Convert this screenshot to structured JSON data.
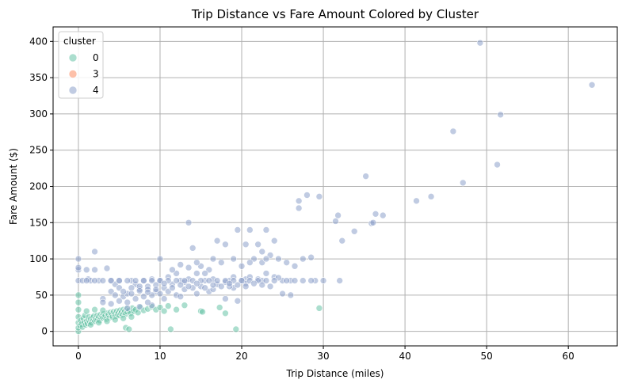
{
  "chart_data": {
    "type": "scatter",
    "title": "Trip Distance vs Fare Amount Colored by Cluster",
    "xlabel": "Trip Distance (miles)",
    "ylabel": "Fare Amount ($)",
    "xlim": [
      -3.1,
      66.0
    ],
    "ylim": [
      -20,
      420
    ],
    "xticks": [
      0,
      10,
      20,
      30,
      40,
      50,
      60
    ],
    "yticks": [
      0,
      50,
      100,
      150,
      200,
      250,
      300,
      350,
      400
    ],
    "grid": true,
    "legend": {
      "title": "cluster",
      "position": "top-left"
    },
    "series": [
      {
        "name": "0",
        "color": "#66c2a5",
        "points": [
          [
            0,
            0
          ],
          [
            0,
            5
          ],
          [
            0,
            12
          ],
          [
            0,
            20
          ],
          [
            0,
            30
          ],
          [
            0,
            40
          ],
          [
            0,
            50
          ],
          [
            0.2,
            8
          ],
          [
            0.3,
            15
          ],
          [
            0.4,
            10
          ],
          [
            0.5,
            6
          ],
          [
            0.6,
            18
          ],
          [
            0.7,
            12
          ],
          [
            0.8,
            22
          ],
          [
            0.9,
            9
          ],
          [
            1.0,
            14
          ],
          [
            1.1,
            11
          ],
          [
            1.2,
            16
          ],
          [
            1.3,
            20
          ],
          [
            1.4,
            13
          ],
          [
            1.5,
            17
          ],
          [
            1.6,
            12
          ],
          [
            1.7,
            19
          ],
          [
            1.8,
            15
          ],
          [
            1.9,
            21
          ],
          [
            2.0,
            14
          ],
          [
            2.1,
            18
          ],
          [
            2.2,
            16
          ],
          [
            2.3,
            22
          ],
          [
            2.4,
            17
          ],
          [
            2.5,
            20
          ],
          [
            2.6,
            15
          ],
          [
            2.7,
            23
          ],
          [
            2.8,
            18
          ],
          [
            2.9,
            21
          ],
          [
            3.0,
            19
          ],
          [
            3.1,
            24
          ],
          [
            3.2,
            20
          ],
          [
            3.3,
            22
          ],
          [
            3.4,
            17
          ],
          [
            3.5,
            25
          ],
          [
            3.6,
            21
          ],
          [
            3.7,
            23
          ],
          [
            3.8,
            19
          ],
          [
            3.9,
            26
          ],
          [
            4.0,
            22
          ],
          [
            4.1,
            24
          ],
          [
            4.2,
            20
          ],
          [
            4.3,
            27
          ],
          [
            4.4,
            23
          ],
          [
            4.5,
            25
          ],
          [
            4.6,
            21
          ],
          [
            4.7,
            28
          ],
          [
            4.8,
            24
          ],
          [
            4.9,
            26
          ],
          [
            5.0,
            22
          ],
          [
            5.1,
            29
          ],
          [
            5.2,
            25
          ],
          [
            5.3,
            27
          ],
          [
            5.4,
            23
          ],
          [
            5.5,
            30
          ],
          [
            5.6,
            26
          ],
          [
            5.7,
            28
          ],
          [
            5.8,
            24
          ],
          [
            5.9,
            31
          ],
          [
            6.0,
            27
          ],
          [
            6.2,
            29
          ],
          [
            6.4,
            25
          ],
          [
            6.6,
            32
          ],
          [
            6.8,
            28
          ],
          [
            7.0,
            30
          ],
          [
            7.3,
            26
          ],
          [
            7.6,
            33
          ],
          [
            8.0,
            29
          ],
          [
            8.5,
            31
          ],
          [
            9.0,
            34
          ],
          [
            9.5,
            30
          ],
          [
            10.0,
            33
          ],
          [
            10.5,
            28
          ],
          [
            11.0,
            35
          ],
          [
            12.0,
            30
          ],
          [
            13.0,
            36
          ],
          [
            15.0,
            28
          ],
          [
            18.0,
            25
          ],
          [
            1.0,
            28
          ],
          [
            2.0,
            30
          ],
          [
            3.0,
            29
          ],
          [
            2.5,
            12
          ],
          [
            1.5,
            9
          ],
          [
            3.5,
            14
          ],
          [
            4.5,
            16
          ],
          [
            5.5,
            18
          ],
          [
            6.5,
            20
          ],
          [
            5.8,
            5
          ],
          [
            6.2,
            3
          ],
          [
            11.3,
            3
          ],
          [
            19.3,
            3
          ],
          [
            29.5,
            32
          ],
          [
            17.3,
            33
          ],
          [
            15.2,
            27
          ]
        ]
      },
      {
        "name": "3",
        "color": "#fc8d62",
        "points": []
      },
      {
        "name": "4",
        "color": "#8da0cb",
        "points": [
          [
            0,
            70
          ],
          [
            0,
            85
          ],
          [
            0,
            100
          ],
          [
            0,
            88
          ],
          [
            0.5,
            70
          ],
          [
            1.0,
            85
          ],
          [
            1.2,
            72
          ],
          [
            1.5,
            70
          ],
          [
            2.0,
            110
          ],
          [
            2.0,
            85
          ],
          [
            2.5,
            70
          ],
          [
            3.0,
            70
          ],
          [
            3.0,
            45
          ],
          [
            3.5,
            87
          ],
          [
            4.0,
            55
          ],
          [
            4.0,
            70
          ],
          [
            4.5,
            65
          ],
          [
            5.0,
            60
          ],
          [
            5.0,
            70
          ],
          [
            5.5,
            48
          ],
          [
            6.0,
            52
          ],
          [
            6.5,
            70
          ],
          [
            7.0,
            65
          ],
          [
            7.5,
            58
          ],
          [
            8.0,
            70
          ],
          [
            8.5,
            62
          ],
          [
            9.0,
            72
          ],
          [
            9.5,
            55
          ],
          [
            10.0,
            100
          ],
          [
            10.0,
            70
          ],
          [
            10.5,
            60
          ],
          [
            11.0,
            75
          ],
          [
            11.5,
            65
          ],
          [
            12.0,
            80
          ],
          [
            12.5,
            70
          ],
          [
            13.0,
            68
          ],
          [
            13.5,
            150
          ],
          [
            13.5,
            72
          ],
          [
            14.0,
            115
          ],
          [
            14.5,
            80
          ],
          [
            15.0,
            90
          ],
          [
            15.5,
            70
          ],
          [
            16.0,
            85
          ],
          [
            16.5,
            72
          ],
          [
            17.0,
            125
          ],
          [
            17.5,
            95
          ],
          [
            18.0,
            120
          ],
          [
            18.5,
            70
          ],
          [
            19.0,
            75
          ],
          [
            19.5,
            140
          ],
          [
            20.0,
            90
          ],
          [
            20.5,
            72
          ],
          [
            21.0,
            140
          ],
          [
            21.5,
            100
          ],
          [
            22.0,
            120
          ],
          [
            22.5,
            95
          ],
          [
            23.0,
            140
          ],
          [
            23.5,
            105
          ],
          [
            24.0,
            125
          ],
          [
            24.5,
            100
          ],
          [
            25.0,
            70
          ],
          [
            25.5,
            95
          ],
          [
            26.0,
            70
          ],
          [
            26.5,
            90
          ],
          [
            27.0,
            170
          ],
          [
            27.0,
            180
          ],
          [
            27.5,
            100
          ],
          [
            28.0,
            188
          ],
          [
            28.5,
            102
          ],
          [
            29.0,
            70
          ],
          [
            29.5,
            186
          ],
          [
            30.0,
            70
          ],
          [
            31.5,
            152
          ],
          [
            31.8,
            160
          ],
          [
            32.0,
            70
          ],
          [
            32.3,
            125
          ],
          [
            33.8,
            138
          ],
          [
            35.2,
            214
          ],
          [
            35.9,
            149
          ],
          [
            36.1,
            150
          ],
          [
            36.4,
            162
          ],
          [
            37.3,
            160
          ],
          [
            41.4,
            180
          ],
          [
            43.2,
            186
          ],
          [
            45.9,
            276
          ],
          [
            47.1,
            205
          ],
          [
            49.2,
            398
          ],
          [
            51.3,
            230
          ],
          [
            51.7,
            299
          ],
          [
            62.9,
            340
          ],
          [
            3.0,
            40
          ],
          [
            4.0,
            38
          ],
          [
            5.0,
            42
          ],
          [
            6.0,
            40
          ],
          [
            7.0,
            45
          ],
          [
            8.0,
            48
          ],
          [
            9.0,
            50
          ],
          [
            10.0,
            52
          ],
          [
            11.0,
            55
          ],
          [
            12.0,
            50
          ],
          [
            13.0,
            58
          ],
          [
            14.0,
            60
          ],
          [
            15.0,
            62
          ],
          [
            16.0,
            55
          ],
          [
            17.0,
            65
          ],
          [
            18.0,
            68
          ],
          [
            19.0,
            60
          ],
          [
            20.0,
            70
          ],
          [
            21.0,
            75
          ],
          [
            22.0,
            72
          ],
          [
            23.0,
            80
          ],
          [
            24.0,
            75
          ],
          [
            25.0,
            52
          ],
          [
            26.0,
            50
          ],
          [
            19.5,
            42
          ],
          [
            18.0,
            45
          ],
          [
            9.0,
            36
          ],
          [
            7.5,
            34
          ],
          [
            6.0,
            32
          ],
          [
            8.5,
            40
          ],
          [
            10.5,
            45
          ],
          [
            12.5,
            48
          ],
          [
            14.5,
            52
          ],
          [
            16.5,
            58
          ],
          [
            18.5,
            62
          ],
          [
            20.5,
            66
          ],
          [
            22.5,
            70
          ],
          [
            24.5,
            74
          ],
          [
            11.5,
            85
          ],
          [
            12.5,
            92
          ],
          [
            13.5,
            88
          ],
          [
            14.5,
            95
          ],
          [
            15.5,
            80
          ],
          [
            16.5,
            100
          ],
          [
            20.5,
            120
          ],
          [
            22.5,
            110
          ],
          [
            19.0,
            100
          ],
          [
            21.0,
            95
          ],
          [
            23.0,
            100
          ],
          [
            26.5,
            70
          ],
          [
            27.5,
            70
          ],
          [
            28.5,
            70
          ],
          [
            25.5,
            70
          ],
          [
            24.0,
            70
          ],
          [
            23.0,
            70
          ],
          [
            22.0,
            70
          ],
          [
            21.0,
            70
          ],
          [
            20.0,
            70
          ],
          [
            19.0,
            70
          ],
          [
            18.0,
            70
          ],
          [
            17.0,
            70
          ],
          [
            16.0,
            70
          ],
          [
            15.0,
            70
          ],
          [
            14.0,
            70
          ],
          [
            13.0,
            70
          ],
          [
            12.0,
            70
          ],
          [
            11.0,
            70
          ],
          [
            10.0,
            70
          ],
          [
            9.0,
            70
          ],
          [
            8.0,
            70
          ],
          [
            7.0,
            70
          ],
          [
            6.0,
            70
          ],
          [
            5.0,
            70
          ],
          [
            4.0,
            70
          ],
          [
            2.0,
            70
          ],
          [
            1.0,
            70
          ],
          [
            6.5,
            60
          ],
          [
            7.5,
            62
          ],
          [
            8.5,
            58
          ],
          [
            9.5,
            64
          ],
          [
            10.5,
            66
          ],
          [
            11.5,
            60
          ],
          [
            12.5,
            64
          ],
          [
            13.5,
            62
          ],
          [
            14.5,
            66
          ],
          [
            15.5,
            60
          ],
          [
            16.5,
            64
          ],
          [
            17.5,
            62
          ],
          [
            18.5,
            66
          ],
          [
            19.5,
            64
          ],
          [
            20.5,
            62
          ],
          [
            21.5,
            66
          ],
          [
            22.5,
            64
          ],
          [
            23.5,
            62
          ],
          [
            4.5,
            50
          ],
          [
            5.5,
            55
          ],
          [
            6.5,
            52
          ],
          [
            7.5,
            56
          ],
          [
            8.5,
            54
          ],
          [
            9.5,
            58
          ]
        ]
      }
    ]
  }
}
